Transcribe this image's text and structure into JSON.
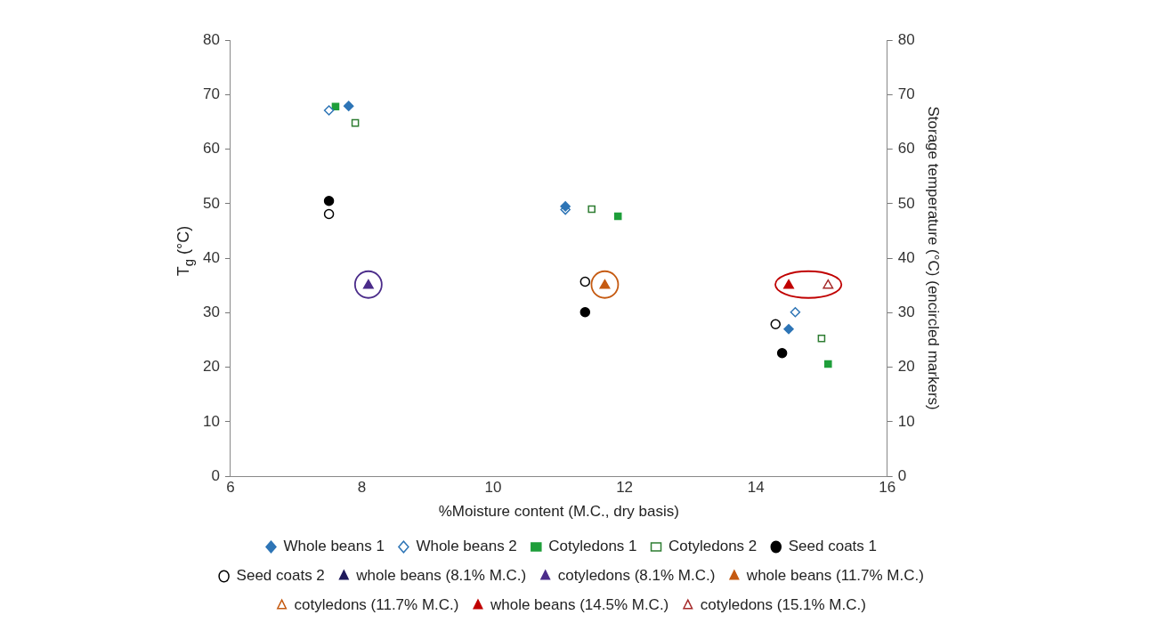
{
  "chart_data": {
    "type": "scatter",
    "xlabel": "%Moisture content (M.C., dry basis)",
    "ylabel": "T$_{g}$ (°C)",
    "y2label": "Storage temperature (°C) (encircled markers)",
    "xlim": [
      6,
      16
    ],
    "xticks": [
      6,
      8,
      10,
      12,
      14,
      16
    ],
    "ylim": [
      0,
      80
    ],
    "yticks": [
      0,
      10,
      20,
      30,
      40,
      50,
      60,
      70,
      80
    ],
    "y2lim": [
      0,
      80
    ],
    "y2ticks": [
      0,
      10,
      20,
      30,
      40,
      50,
      60,
      70,
      80
    ],
    "grid": false,
    "legend": "bottom",
    "series": [
      {
        "name": "Whole beans 1",
        "color": "#2e75b6",
        "marker": "diamond",
        "x": [
          7.8,
          11.1,
          14.5
        ],
        "values": [
          67.9,
          49.5,
          27.0
        ]
      },
      {
        "name": "Whole beans 2",
        "color": "#2e75b6",
        "marker": "diamond-open",
        "x": [
          7.5,
          11.1,
          14.6
        ],
        "values": [
          67.1,
          48.9,
          30.1
        ]
      },
      {
        "name": "Cotyledons 1",
        "color": "#1e9e3a",
        "marker": "square",
        "x": [
          7.6,
          11.9,
          15.1
        ],
        "values": [
          67.8,
          47.7,
          20.6
        ]
      },
      {
        "name": "Cotyledons 2",
        "color": "#2e7d32",
        "marker": "square-open",
        "x": [
          7.9,
          11.5,
          15.0
        ],
        "values": [
          64.8,
          49.0,
          25.3
        ]
      },
      {
        "name": "Seed coats 1",
        "color": "#000000",
        "marker": "circle",
        "x": [
          7.5,
          11.4,
          14.4
        ],
        "values": [
          50.5,
          30.1,
          22.6
        ]
      },
      {
        "name": "Seed coats 2",
        "color": "#000000",
        "marker": "circle-open",
        "x": [
          7.5,
          11.4,
          14.3
        ],
        "values": [
          48.1,
          35.7,
          27.9
        ]
      },
      {
        "name": "whole beans (8.1% M.C.)",
        "color": "#1f1a5c",
        "marker": "triangle",
        "axis": "y2"
      },
      {
        "name": "cotyledons (8.1% M.C.)",
        "color": "#4b2c8a",
        "marker": "triangle",
        "axis": "y2",
        "x": [
          8.1
        ],
        "values": [
          35
        ]
      },
      {
        "name": "whole beans (11.7% M.C.)",
        "color": "#c55a11",
        "marker": "triangle",
        "axis": "y2",
        "x": [
          11.7
        ],
        "values": [
          35
        ]
      },
      {
        "name": "cotyledons (11.7% M.C.)",
        "color": "#c55a11",
        "marker": "triangle-open",
        "axis": "y2"
      },
      {
        "name": "whole beans (14.5% M.C.)",
        "color": "#c00000",
        "marker": "triangle",
        "axis": "y2",
        "x": [
          14.5
        ],
        "values": [
          35
        ]
      },
      {
        "name": "cotyledons (15.1% M.C.)",
        "color": "#a52a2a",
        "marker": "triangle-open",
        "axis": "y2",
        "x": [
          15.1
        ],
        "values": [
          35
        ]
      }
    ]
  }
}
